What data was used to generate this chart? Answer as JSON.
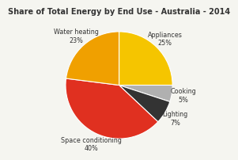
{
  "title": "Share of Total Energy by End Use - Australia - 2014",
  "labels": [
    "Appliances\n25%",
    "Cooking\n5%",
    "Lighting\n7%",
    "Space conditioning\n40%",
    "Water heating\n23%"
  ],
  "values": [
    25,
    5,
    7,
    40,
    23
  ],
  "colors": [
    "#f5c500",
    "#b0b0b0",
    "#333333",
    "#e03020",
    "#f0a000"
  ],
  "startangle": 90,
  "counterclock": false,
  "title_fontsize": 7.0,
  "label_fontsize": 5.8,
  "background_color": "#f5f5f0"
}
